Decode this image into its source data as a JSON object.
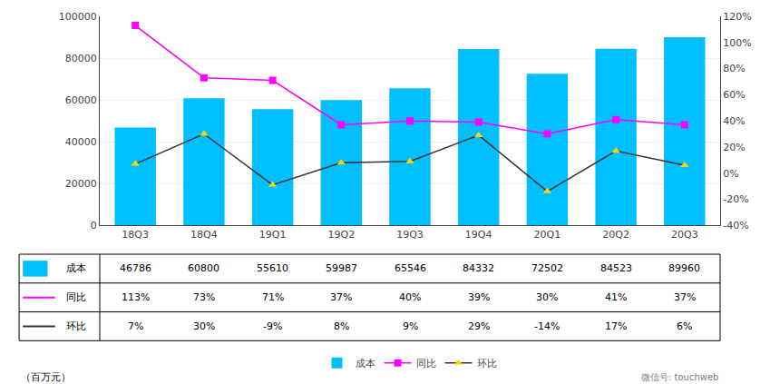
{
  "chart_data": {
    "type": "bar",
    "categories": [
      "18Q3",
      "18Q4",
      "19Q1",
      "19Q2",
      "19Q3",
      "19Q4",
      "20Q1",
      "20Q2",
      "20Q3"
    ],
    "series": [
      {
        "name": "成本",
        "type": "bar",
        "color": "#00BFFF",
        "values": [
          46786,
          60800,
          55610,
          59987,
          65546,
          84332,
          72502,
          84523,
          89960
        ]
      },
      {
        "name": "同比",
        "type": "line",
        "axis": "y2",
        "color": "#FF00FF",
        "marker": "square",
        "values": [
          1.13,
          0.73,
          0.71,
          0.37,
          0.4,
          0.39,
          0.3,
          0.41,
          0.37
        ],
        "value_labels": [
          "113%",
          "73%",
          "71%",
          "37%",
          "40%",
          "39%",
          "30%",
          "41%",
          "37%"
        ]
      },
      {
        "name": "环比",
        "type": "line",
        "axis": "y2",
        "color": "#333333",
        "marker": "triangle-up",
        "colors": [
          "#FFD700",
          "#FFD700",
          "#FFD700",
          "#FFD700",
          "#FFD700",
          "#FFD700",
          "#FFD700",
          "#FFD700",
          "#FFD700"
        ],
        "values": [
          0.07,
          0.3,
          -0.09,
          0.08,
          0.09,
          0.29,
          -0.14,
          0.17,
          0.06
        ],
        "value_labels": [
          "7%",
          "30%",
          "-9%",
          "8%",
          "9%",
          "29%",
          "-14%",
          "17%",
          "6%"
        ]
      }
    ],
    "ylim": [
      0,
      100000
    ],
    "yticks": [
      0,
      20000,
      40000,
      60000,
      80000,
      100000
    ],
    "y2lim": [
      -0.4,
      1.2
    ],
    "y2ticks": [
      {
        "value": -0.4,
        "label": "-40%"
      },
      {
        "value": -0.2,
        "label": "-20%"
      },
      {
        "value": 0,
        "label": "0%"
      },
      {
        "value": 0.2,
        "label": "20%"
      },
      {
        "value": 0.4,
        "label": "40%"
      },
      {
        "value": 0.6,
        "label": "60%"
      },
      {
        "value": 0.8,
        "label": "80%"
      },
      {
        "value": 1,
        "label": "100%"
      },
      {
        "value": 1.2,
        "label": "120%"
      }
    ],
    "annotations": [
      "（百万元）",
      "微信号: touchweb"
    ],
    "grid": true,
    "legend": "bottom"
  }
}
